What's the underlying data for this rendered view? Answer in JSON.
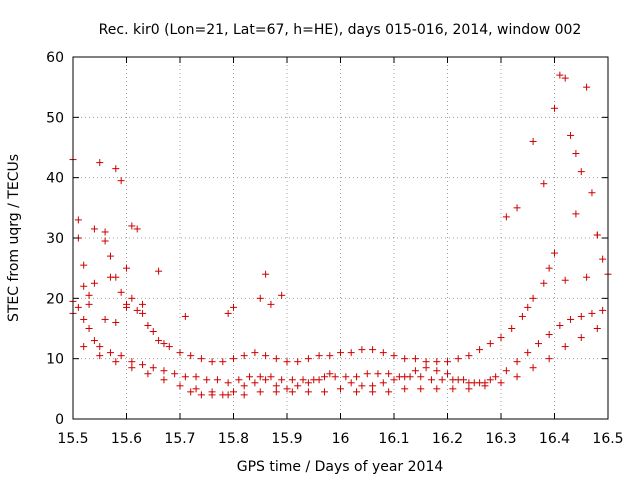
{
  "chart_data": {
    "type": "scatter",
    "title": "Rec. kir0 (Lon=21, Lat=67, h=HE), days 015-016, 2014, window 002",
    "xlabel": "GPS time / Days of year 2014",
    "ylabel": "STEC from uqrg / TECUs",
    "xlim": [
      15.5,
      16.5
    ],
    "ylim": [
      0,
      60
    ],
    "xticks": [
      "15.5",
      "15.6",
      "15.7",
      "15.8",
      "15.9",
      "16",
      "16.1",
      "16.2",
      "16.3",
      "16.4",
      "16.5"
    ],
    "yticks": [
      "0",
      "10",
      "20",
      "30",
      "40",
      "50",
      "60"
    ],
    "grid": true,
    "marker": "+",
    "color": "#cc0000",
    "series": [
      {
        "name": "STEC",
        "x": [
          15.5,
          15.5,
          15.51,
          15.51,
          15.52,
          15.52,
          15.53,
          15.53,
          15.54,
          15.55,
          15.56,
          15.56,
          15.57,
          15.58,
          15.58,
          15.59,
          15.59,
          15.6,
          15.6,
          15.61,
          15.61,
          15.62,
          15.62,
          15.63,
          15.64,
          15.65,
          15.66,
          15.67,
          15.68,
          15.7,
          15.72,
          15.74,
          15.76,
          15.78,
          15.8,
          15.82,
          15.84,
          15.86,
          15.88,
          15.9,
          15.92,
          15.94,
          15.96,
          15.98,
          16.0,
          16.02,
          16.04,
          16.06,
          16.08,
          16.1,
          16.12,
          16.14,
          16.16,
          16.18,
          16.2,
          16.22,
          16.24,
          16.26,
          16.28,
          16.3,
          16.32,
          16.34,
          16.35,
          16.36,
          16.38,
          16.39,
          16.4,
          16.41,
          16.42,
          16.43,
          16.44,
          16.45,
          16.46,
          16.47,
          16.48,
          16.49,
          16.5,
          15.5,
          15.51,
          15.52,
          15.53,
          15.54,
          15.55,
          15.57,
          15.59,
          15.61,
          15.63,
          15.65,
          15.67,
          15.69,
          15.71,
          15.73,
          15.75,
          15.77,
          15.79,
          15.81,
          15.83,
          15.85,
          15.87,
          15.89,
          15.91,
          15.93,
          15.95,
          15.97,
          15.99,
          16.01,
          16.03,
          16.05,
          16.07,
          16.09,
          16.11,
          16.13,
          16.15,
          16.17,
          16.19,
          16.21,
          16.23,
          16.25,
          16.27,
          16.29,
          16.31,
          16.33,
          16.35,
          16.37,
          16.39,
          16.41,
          16.43,
          16.45,
          16.47,
          16.49,
          15.52,
          15.55,
          15.58,
          15.61,
          15.64,
          15.67,
          15.7,
          15.73,
          15.76,
          15.79,
          15.82,
          15.85,
          15.88,
          15.91,
          15.94,
          15.97,
          16.0,
          16.03,
          16.06,
          16.09,
          16.12,
          16.15,
          16.18,
          16.21,
          16.24,
          16.27,
          16.3,
          16.33,
          16.36,
          16.39,
          16.42,
          16.45,
          16.48,
          15.86,
          15.87,
          15.85,
          15.89,
          15.8,
          15.79,
          15.71,
          15.66,
          15.63,
          15.6,
          15.57,
          15.54,
          15.56,
          15.58,
          16.31,
          16.33,
          16.36,
          16.38,
          16.4,
          16.42,
          16.44,
          16.46,
          16.48,
          15.72,
          15.74,
          15.76,
          15.78,
          15.8,
          15.82,
          15.84,
          15.86,
          15.88,
          15.9,
          15.92,
          15.94,
          15.96,
          15.98,
          16.02,
          16.04,
          16.06,
          16.08,
          16.1,
          16.12,
          16.14,
          16.16,
          16.18,
          16.2,
          16.22,
          16.24,
          16.26,
          16.28
        ],
        "y": [
          19.5,
          43.0,
          33.0,
          30.0,
          25.5,
          22.0,
          20.5,
          19.0,
          31.5,
          42.5,
          29.5,
          31.0,
          27.0,
          23.5,
          41.5,
          21.0,
          39.5,
          19.0,
          25.0,
          32.0,
          20.0,
          31.5,
          18.0,
          17.5,
          15.5,
          14.5,
          13.0,
          12.5,
          12.0,
          11.0,
          10.5,
          10.0,
          9.5,
          9.5,
          10.0,
          10.5,
          11.0,
          10.5,
          10.0,
          9.5,
          9.5,
          10.0,
          10.5,
          10.5,
          11.0,
          11.0,
          11.5,
          11.5,
          11.0,
          10.5,
          10.0,
          10.0,
          9.5,
          9.5,
          9.5,
          10.0,
          10.5,
          11.5,
          12.5,
          13.5,
          15.0,
          17.0,
          18.5,
          20.0,
          22.5,
          25.0,
          27.5,
          57.0,
          56.5,
          47.0,
          44.0,
          41.0,
          55.0,
          37.5,
          30.5,
          26.5,
          24.0,
          17.5,
          18.5,
          16.5,
          15.0,
          13.0,
          12.0,
          11.0,
          10.5,
          9.5,
          9.0,
          8.5,
          8.0,
          7.5,
          7.0,
          7.0,
          6.5,
          6.5,
          6.0,
          6.5,
          7.0,
          7.0,
          7.0,
          6.5,
          6.5,
          6.5,
          6.5,
          7.0,
          7.0,
          7.0,
          7.0,
          7.5,
          7.5,
          7.5,
          7.0,
          7.0,
          7.0,
          6.5,
          6.5,
          6.5,
          6.5,
          6.0,
          6.0,
          7.0,
          8.0,
          9.5,
          11.0,
          12.5,
          14.0,
          15.5,
          16.5,
          17.0,
          17.5,
          18.0,
          12.0,
          10.5,
          9.5,
          8.5,
          7.5,
          6.5,
          5.5,
          5.0,
          4.5,
          4.0,
          4.0,
          4.5,
          4.5,
          4.5,
          4.5,
          4.5,
          5.0,
          4.5,
          4.5,
          4.5,
          5.0,
          5.0,
          5.0,
          5.0,
          5.0,
          5.5,
          6.0,
          7.0,
          8.5,
          10.0,
          12.0,
          13.5,
          15.0,
          24.0,
          19.0,
          20.0,
          20.5,
          18.5,
          17.5,
          17.0,
          24.5,
          19.0,
          18.5,
          23.5,
          22.5,
          16.5,
          16.0,
          33.5,
          35.0,
          46.0,
          39.0,
          51.5,
          23.0,
          34.0,
          23.5,
          30.5,
          4.5,
          4.0,
          4.0,
          4.0,
          4.5,
          5.5,
          6.0,
          6.5,
          5.5,
          5.0,
          5.5,
          6.0,
          6.5,
          7.5,
          6.0,
          5.5,
          5.5,
          6.0,
          6.5,
          7.0,
          8.0,
          8.5,
          8.0,
          7.5,
          6.5,
          6.0,
          6.0,
          6.5
        ]
      }
    ]
  }
}
